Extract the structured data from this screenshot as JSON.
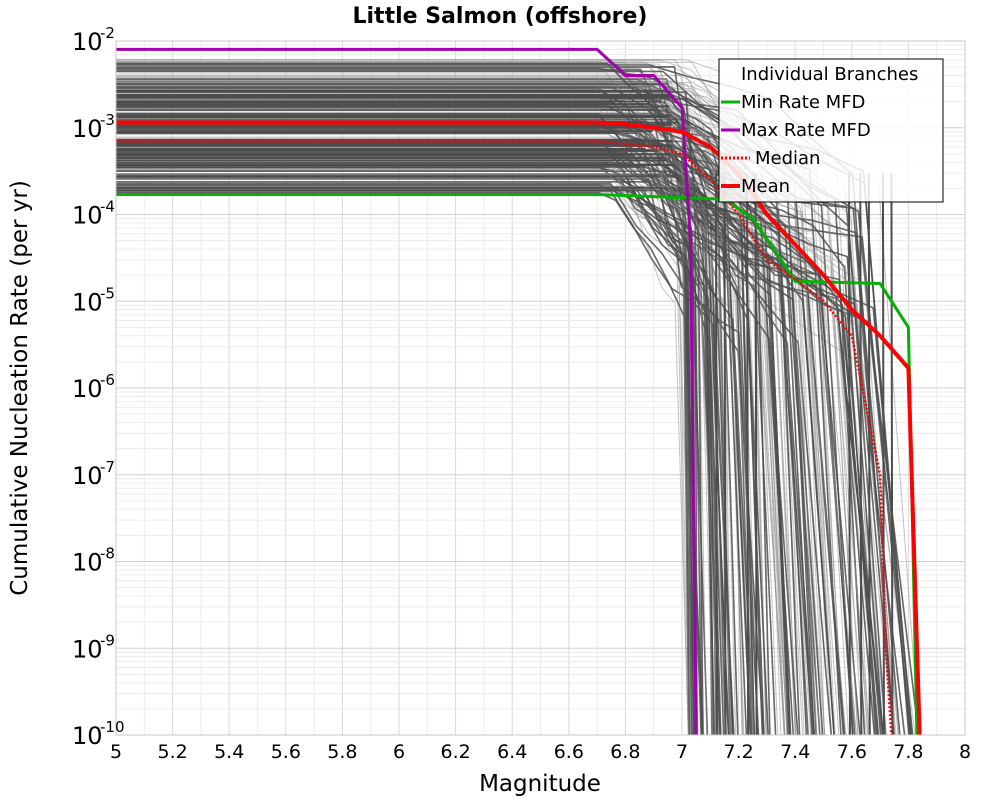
{
  "chart_data": {
    "type": "line",
    "title": "Little Salmon (offshore)",
    "xlabel": "Magnitude",
    "ylabel": "Cumulative Nucleation Rate (per yr)",
    "xlim": [
      5,
      8
    ],
    "ylim": [
      1e-10,
      0.01
    ],
    "yscale": "log",
    "grid": true,
    "x_ticks": [
      "5",
      "5.2",
      "5.4",
      "5.6",
      "5.8",
      "6",
      "6.2",
      "6.4",
      "6.6",
      "6.8",
      "7",
      "7.2",
      "7.4",
      "7.6",
      "7.8",
      "8"
    ],
    "y_ticks": [
      {
        "base": "10",
        "exp": "-2",
        "value": 0.01
      },
      {
        "base": "10",
        "exp": "-3",
        "value": 0.001
      },
      {
        "base": "10",
        "exp": "-4",
        "value": 0.0001
      },
      {
        "base": "10",
        "exp": "-5",
        "value": 1e-05
      },
      {
        "base": "10",
        "exp": "-6",
        "value": 1e-06
      },
      {
        "base": "10",
        "exp": "-7",
        "value": 1e-07
      },
      {
        "base": "10",
        "exp": "-8",
        "value": 1e-08
      },
      {
        "base": "10",
        "exp": "-9",
        "value": 1e-09
      },
      {
        "base": "10",
        "exp": "-10",
        "value": 1e-10
      }
    ],
    "legend": {
      "position": "top-right",
      "entries": [
        {
          "label": "Individual Branches",
          "color": "#4d4d4d",
          "style": "solid",
          "show_line": false
        },
        {
          "label": "Min Rate MFD",
          "color": "#00b300",
          "style": "solid"
        },
        {
          "label": "Max Rate MFD",
          "color": "#a000b0",
          "style": "solid"
        },
        {
          "label": "Median",
          "color": "#ff0000",
          "style": "dotted"
        },
        {
          "label": "Mean",
          "color": "#ff0000",
          "style": "solid-thick"
        }
      ]
    },
    "series": [
      {
        "name": "Min Rate MFD",
        "color": "#00b300",
        "x": [
          5,
          6.7,
          7.15,
          7.25,
          7.35,
          7.4,
          7.7,
          7.8,
          7.83
        ],
        "y": [
          0.00017,
          0.00017,
          0.00015,
          9e-05,
          3e-05,
          1.7e-05,
          1.6e-05,
          5e-06,
          1e-10
        ]
      },
      {
        "name": "Max Rate MFD",
        "color": "#a000b0",
        "x": [
          5,
          6.7,
          6.8,
          6.9,
          7.0,
          7.03,
          7.05
        ],
        "y": [
          0.008,
          0.008,
          0.004,
          0.004,
          0.0017,
          5e-05,
          1e-10
        ]
      },
      {
        "name": "Median",
        "color": "#ff0000",
        "style": "dotted",
        "x": [
          5,
          6.7,
          6.8,
          6.9,
          7.0,
          7.1,
          7.2,
          7.3,
          7.4,
          7.5,
          7.6,
          7.7,
          7.72,
          7.74
        ],
        "y": [
          0.0007,
          0.0007,
          0.00065,
          0.0006,
          0.0005,
          0.00025,
          0.0001,
          3e-05,
          1.8e-05,
          1e-05,
          4e-06,
          1e-07,
          1e-09,
          1e-10
        ]
      },
      {
        "name": "Mean",
        "color": "#ff0000",
        "style": "thick",
        "x": [
          5,
          6.7,
          6.8,
          6.9,
          7.0,
          7.1,
          7.2,
          7.3,
          7.4,
          7.5,
          7.6,
          7.7,
          7.8,
          7.84
        ],
        "y": [
          0.00115,
          0.00115,
          0.0011,
          0.001,
          0.0009,
          0.0006,
          0.0003,
          0.0001,
          4.5e-05,
          2e-05,
          8e-06,
          4e-06,
          1.7e-06,
          1e-10
        ]
      }
    ]
  }
}
